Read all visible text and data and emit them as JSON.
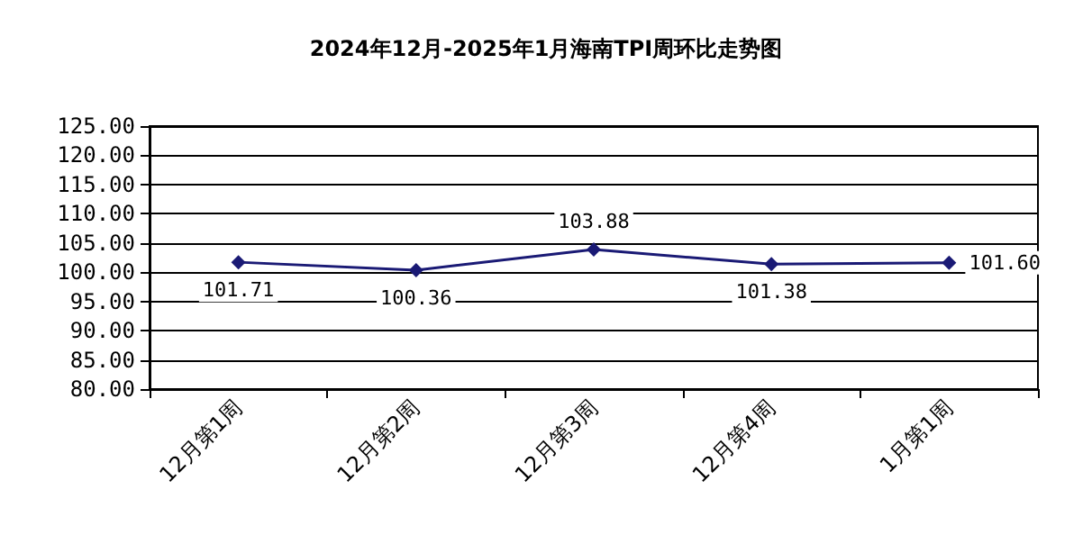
{
  "chart_data": {
    "type": "line",
    "title": "2024年12月-2025年1月海南TPI周环比走势图",
    "categories": [
      "12月第1周",
      "12月第2周",
      "12月第3周",
      "12月第4周",
      "1月第1周"
    ],
    "series": [
      {
        "color": "#1a1a75",
        "values": [
          101.71,
          100.36,
          103.88,
          101.38,
          101.6
        ],
        "value_labels": [
          "101.71",
          "100.36",
          "103.88",
          "101.38",
          "101.60"
        ]
      }
    ],
    "ylim": [
      80,
      125
    ],
    "yticks": [
      {
        "value": 80,
        "label": "80.00"
      },
      {
        "value": 85,
        "label": "85.00"
      },
      {
        "value": 90,
        "label": "90.00"
      },
      {
        "value": 95,
        "label": "95.00"
      },
      {
        "value": 100,
        "label": "100.00"
      },
      {
        "value": 105,
        "label": "105.00"
      },
      {
        "value": 110,
        "label": "110.00"
      },
      {
        "value": 115,
        "label": "115.00"
      },
      {
        "value": 120,
        "label": "120.00"
      },
      {
        "value": 125,
        "label": "125.00"
      }
    ],
    "grid": "y",
    "marker": "diamond",
    "line_style": "solid"
  }
}
